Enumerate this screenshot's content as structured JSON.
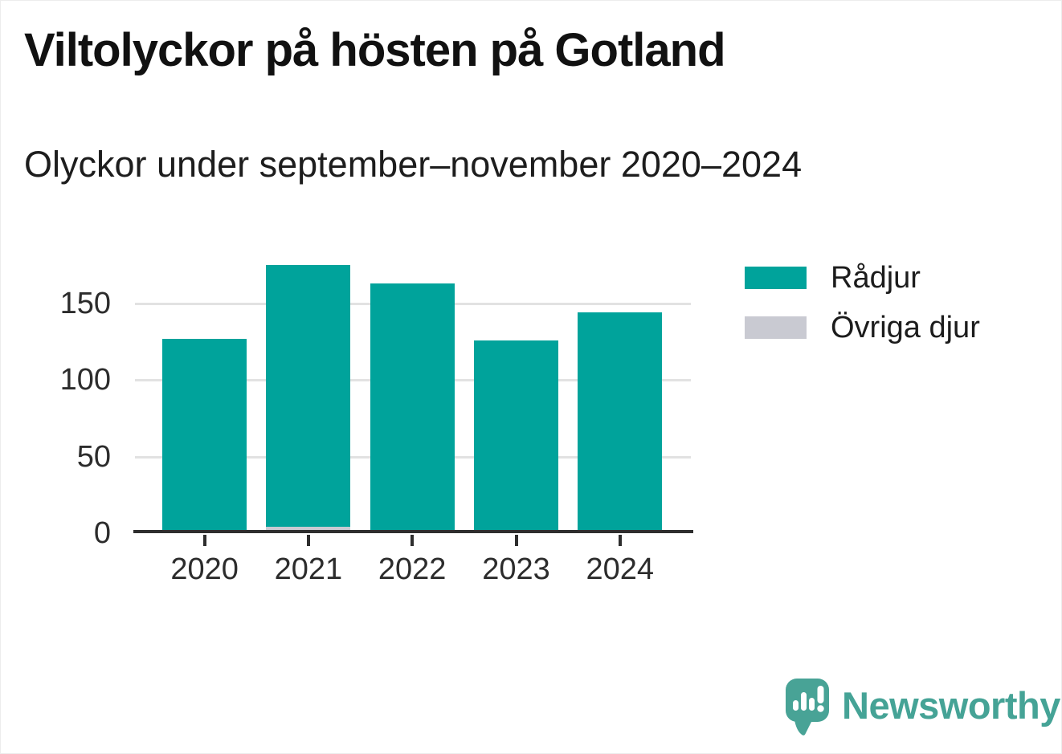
{
  "header": {
    "title": "Viltolyckor på hösten på Gotland",
    "subtitle": "Olyckor under september–november 2020–2024"
  },
  "chart_data": {
    "type": "bar",
    "stacked": true,
    "title": "Viltolyckor på hösten på Gotland",
    "subtitle": "Olyckor under september–november 2020–2024",
    "categories": [
      "2020",
      "2021",
      "2022",
      "2023",
      "2024"
    ],
    "series": [
      {
        "name": "Rådjur",
        "color": "#00A39B",
        "values": [
          126,
          171,
          162,
          125,
          143
        ]
      },
      {
        "name": "Övriga djur",
        "color": "#C9CAD2",
        "values": [
          0,
          3,
          0,
          0,
          0
        ]
      }
    ],
    "bar_totals": [
      126,
      174,
      162,
      125,
      143
    ],
    "xlabel": "",
    "ylabel": "",
    "yticks": [
      0,
      50,
      100,
      150
    ],
    "ylim": [
      0,
      180
    ],
    "grid": true,
    "legend_position": "right"
  },
  "footer": {
    "brand": "Newsworthy"
  },
  "colors": {
    "bar_teal": "#00A39B",
    "bar_gray": "#C9CAD2",
    "gridline": "#E2E2E2",
    "axis": "#2E2E2E",
    "text": "#1A1A1A",
    "brand_teal": "#45A396"
  }
}
